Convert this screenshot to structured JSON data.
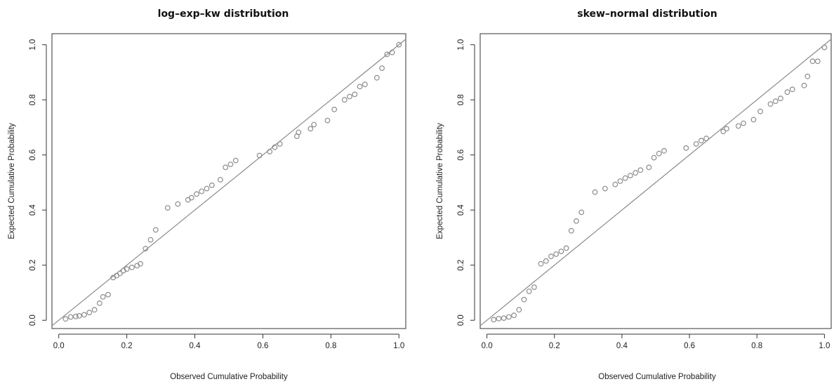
{
  "chart_data": [
    {
      "type": "scatter",
      "title": "log–exp–kw distribution",
      "xlabel": "Observed Cumulative Probability",
      "ylabel": "Expected Cumulative Probability",
      "xlim": [
        -0.02,
        1.02
      ],
      "ylim": [
        -0.03,
        1.04
      ],
      "xticks": [
        "0.0",
        "0.2",
        "0.4",
        "0.6",
        "0.8",
        "1.0"
      ],
      "yticks": [
        "0.0",
        "0.2",
        "0.4",
        "0.6",
        "0.8",
        "1.0"
      ],
      "reference_line": {
        "slope": 1,
        "intercept": 0
      },
      "grid": false,
      "point_color": "#8c8c8c",
      "points": [
        [
          0.02,
          0.005
        ],
        [
          0.035,
          0.012
        ],
        [
          0.05,
          0.014
        ],
        [
          0.06,
          0.016
        ],
        [
          0.075,
          0.02
        ],
        [
          0.09,
          0.028
        ],
        [
          0.105,
          0.038
        ],
        [
          0.12,
          0.062
        ],
        [
          0.13,
          0.085
        ],
        [
          0.145,
          0.093
        ],
        [
          0.16,
          0.155
        ],
        [
          0.17,
          0.162
        ],
        [
          0.18,
          0.17
        ],
        [
          0.19,
          0.18
        ],
        [
          0.2,
          0.186
        ],
        [
          0.215,
          0.192
        ],
        [
          0.23,
          0.198
        ],
        [
          0.24,
          0.205
        ],
        [
          0.255,
          0.26
        ],
        [
          0.27,
          0.292
        ],
        [
          0.285,
          0.328
        ],
        [
          0.32,
          0.408
        ],
        [
          0.35,
          0.422
        ],
        [
          0.38,
          0.437
        ],
        [
          0.39,
          0.445
        ],
        [
          0.405,
          0.458
        ],
        [
          0.42,
          0.468
        ],
        [
          0.435,
          0.478
        ],
        [
          0.45,
          0.49
        ],
        [
          0.475,
          0.51
        ],
        [
          0.49,
          0.555
        ],
        [
          0.505,
          0.566
        ],
        [
          0.52,
          0.58
        ],
        [
          0.59,
          0.598
        ],
        [
          0.62,
          0.612
        ],
        [
          0.635,
          0.628
        ],
        [
          0.65,
          0.64
        ],
        [
          0.7,
          0.668
        ],
        [
          0.705,
          0.682
        ],
        [
          0.74,
          0.695
        ],
        [
          0.75,
          0.71
        ],
        [
          0.79,
          0.725
        ],
        [
          0.81,
          0.765
        ],
        [
          0.84,
          0.8
        ],
        [
          0.855,
          0.812
        ],
        [
          0.87,
          0.82
        ],
        [
          0.885,
          0.848
        ],
        [
          0.9,
          0.856
        ],
        [
          0.935,
          0.88
        ],
        [
          0.95,
          0.915
        ],
        [
          0.965,
          0.965
        ],
        [
          0.98,
          0.972
        ],
        [
          1.0,
          1.0
        ]
      ]
    },
    {
      "type": "scatter",
      "title": "skew–normal distribution",
      "xlabel": "Observed Cumulative Probability",
      "ylabel": "Expected Cumulative Probability",
      "xlim": [
        -0.02,
        1.02
      ],
      "ylim": [
        -0.03,
        1.04
      ],
      "xticks": [
        "0.0",
        "0.2",
        "0.4",
        "0.6",
        "0.8",
        "1.0"
      ],
      "yticks": [
        "0.0",
        "0.2",
        "0.4",
        "0.6",
        "0.8",
        "1.0"
      ],
      "reference_line": {
        "slope": 1,
        "intercept": 0
      },
      "grid": false,
      "point_color": "#8c8c8c",
      "points": [
        [
          0.02,
          0.002
        ],
        [
          0.035,
          0.006
        ],
        [
          0.05,
          0.008
        ],
        [
          0.065,
          0.012
        ],
        [
          0.08,
          0.018
        ],
        [
          0.095,
          0.038
        ],
        [
          0.11,
          0.075
        ],
        [
          0.125,
          0.105
        ],
        [
          0.14,
          0.12
        ],
        [
          0.16,
          0.205
        ],
        [
          0.175,
          0.215
        ],
        [
          0.19,
          0.232
        ],
        [
          0.205,
          0.24
        ],
        [
          0.22,
          0.25
        ],
        [
          0.235,
          0.262
        ],
        [
          0.25,
          0.325
        ],
        [
          0.265,
          0.36
        ],
        [
          0.28,
          0.392
        ],
        [
          0.32,
          0.465
        ],
        [
          0.35,
          0.478
        ],
        [
          0.38,
          0.493
        ],
        [
          0.395,
          0.505
        ],
        [
          0.41,
          0.516
        ],
        [
          0.425,
          0.525
        ],
        [
          0.44,
          0.535
        ],
        [
          0.455,
          0.545
        ],
        [
          0.48,
          0.555
        ],
        [
          0.495,
          0.59
        ],
        [
          0.51,
          0.605
        ],
        [
          0.525,
          0.615
        ],
        [
          0.59,
          0.625
        ],
        [
          0.62,
          0.64
        ],
        [
          0.635,
          0.652
        ],
        [
          0.65,
          0.66
        ],
        [
          0.7,
          0.685
        ],
        [
          0.71,
          0.695
        ],
        [
          0.745,
          0.705
        ],
        [
          0.76,
          0.715
        ],
        [
          0.79,
          0.728
        ],
        [
          0.81,
          0.758
        ],
        [
          0.84,
          0.785
        ],
        [
          0.855,
          0.795
        ],
        [
          0.87,
          0.805
        ],
        [
          0.89,
          0.828
        ],
        [
          0.905,
          0.838
        ],
        [
          0.94,
          0.852
        ],
        [
          0.95,
          0.885
        ],
        [
          0.965,
          0.94
        ],
        [
          0.98,
          0.94
        ],
        [
          1.0,
          0.99
        ]
      ]
    }
  ]
}
